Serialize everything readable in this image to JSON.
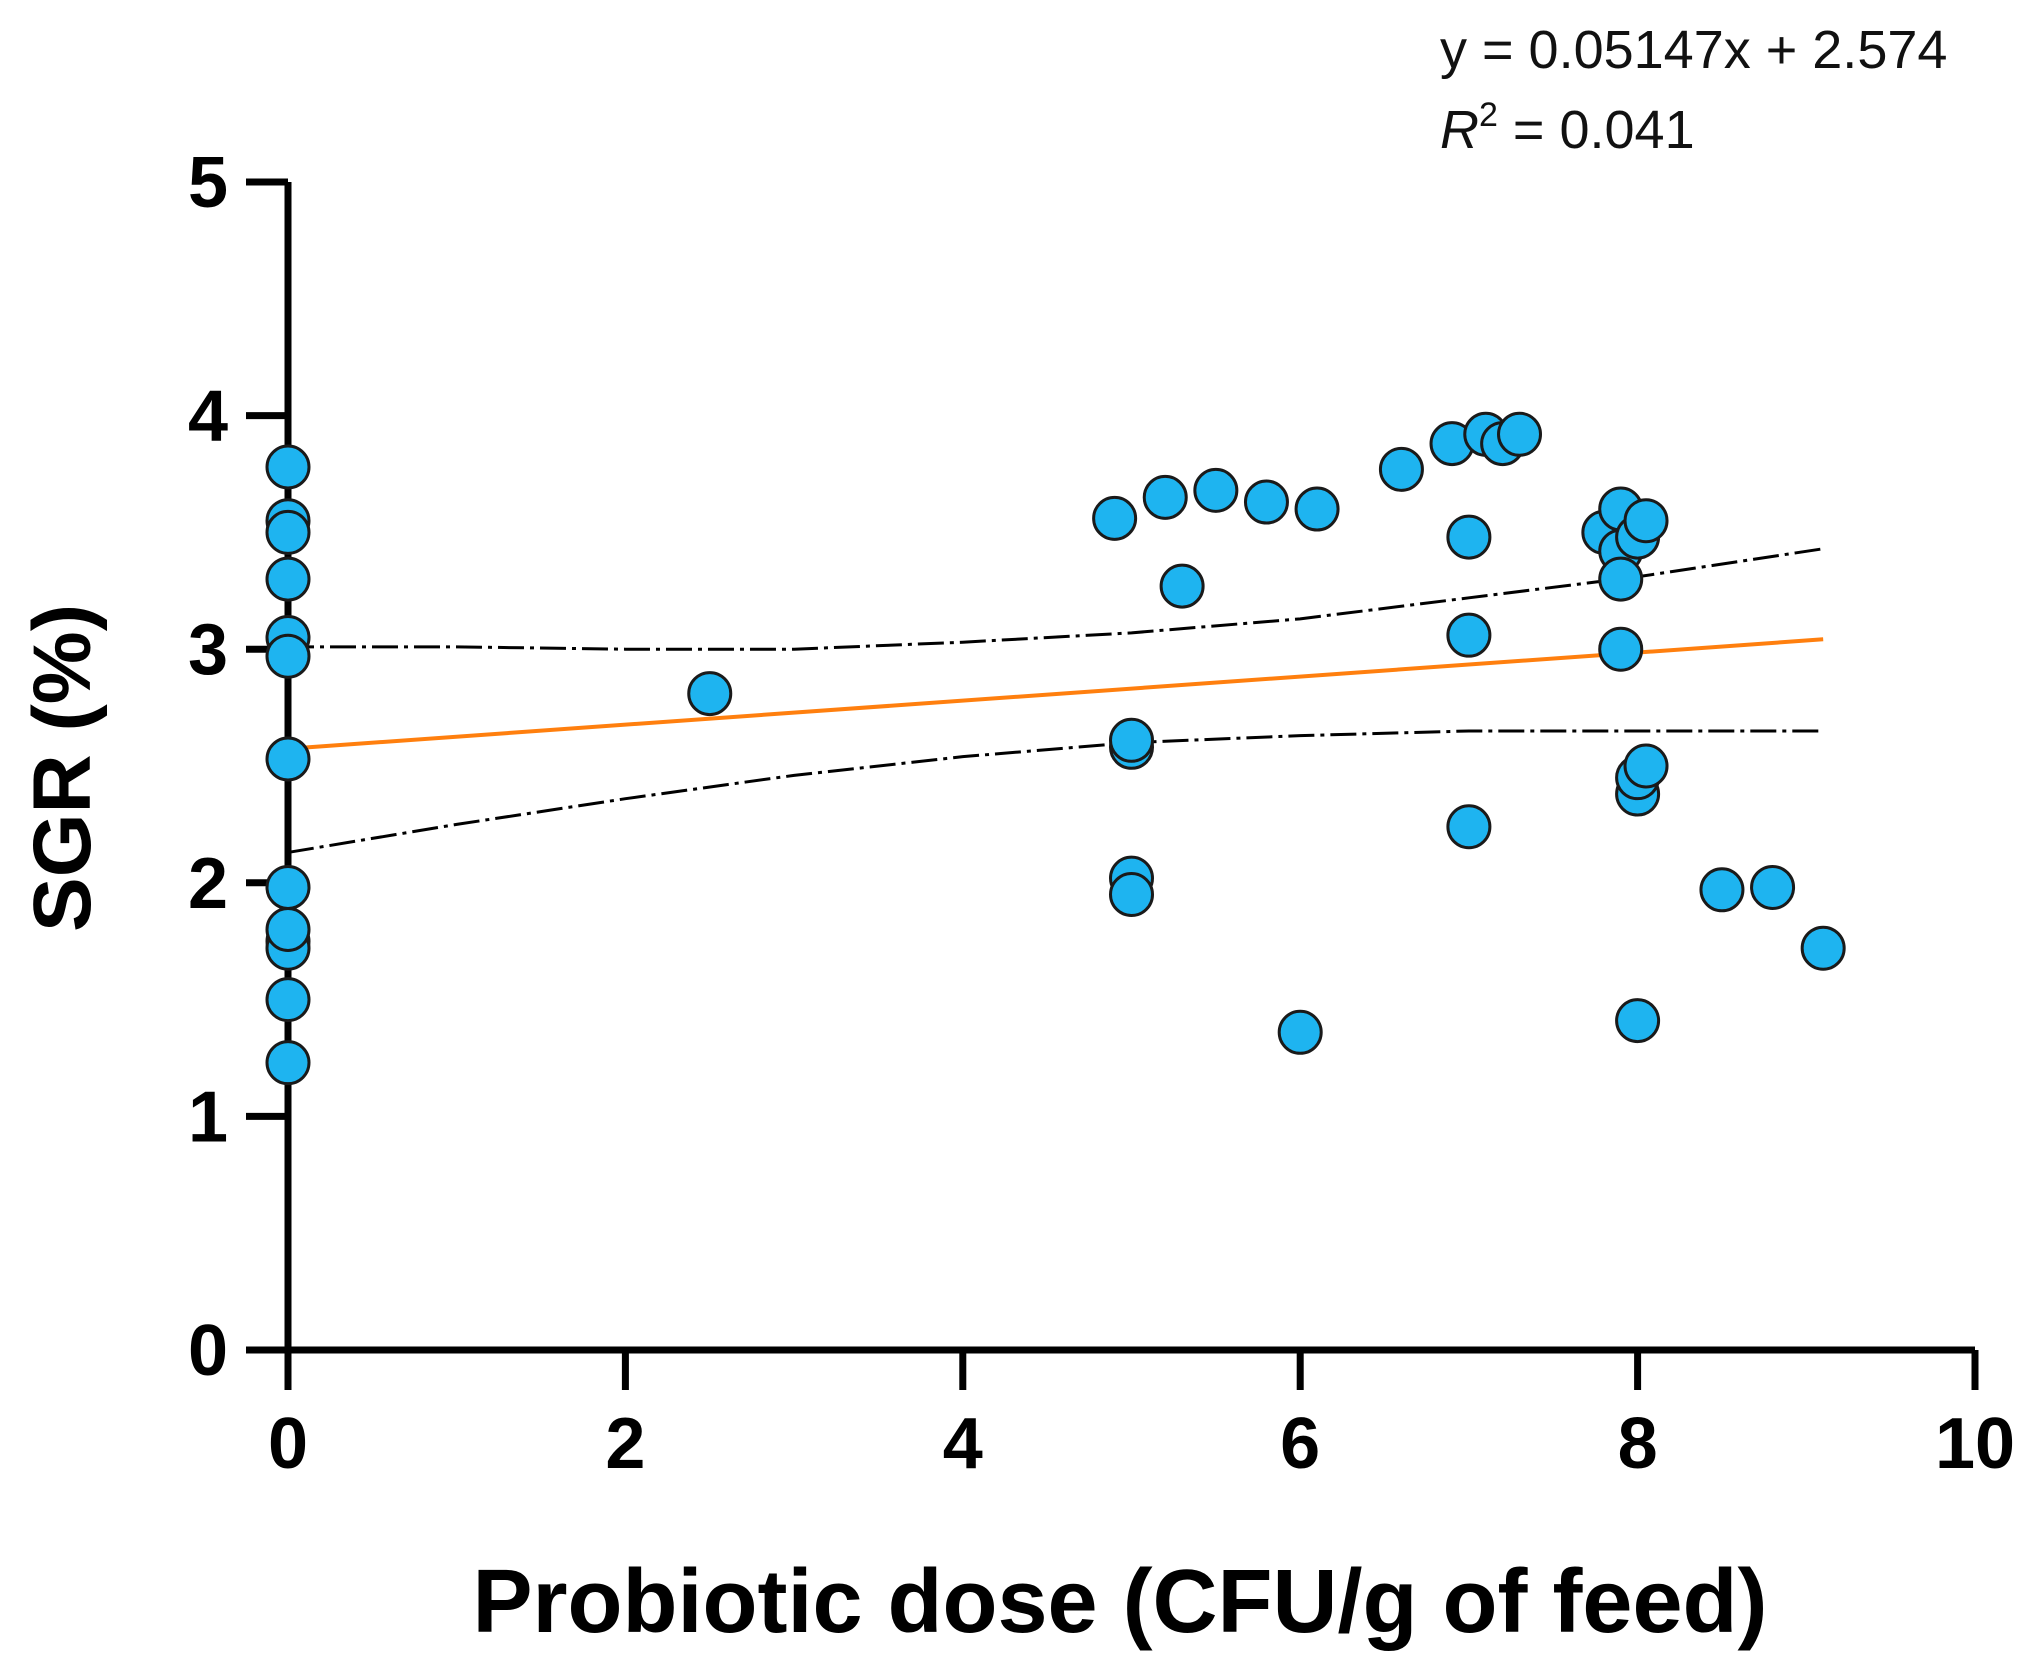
{
  "chart_data": {
    "type": "scatter",
    "title": "",
    "xlabel": "Probiotic dose (CFU/g of feed)",
    "ylabel": "SGR (%)",
    "xlim": [
      0,
      10
    ],
    "ylim": [
      0,
      5
    ],
    "xticks": [
      0,
      2,
      4,
      6,
      8,
      10
    ],
    "yticks": [
      0,
      1,
      2,
      3,
      4,
      5
    ],
    "grid": false,
    "annotation": {
      "equation": "y = 0.05147x + 2.574",
      "r2_prefix": "R",
      "r2_sup": "2",
      "r2_value": " = 0.041"
    },
    "colors": {
      "point_fill": "#1EB4F0",
      "point_stroke": "#1a1a1a",
      "fit_line": "#FF7F0E",
      "ci_line": "#000000"
    },
    "fit": {
      "slope": 0.05147,
      "intercept": 2.574,
      "x_range": [
        0,
        9.1
      ]
    },
    "confidence_band": {
      "upper": [
        [
          0,
          3.01
        ],
        [
          1,
          3.01
        ],
        [
          2,
          3.0
        ],
        [
          3,
          3.0
        ],
        [
          4,
          3.03
        ],
        [
          5,
          3.07
        ],
        [
          6,
          3.13
        ],
        [
          7,
          3.22
        ],
        [
          8,
          3.31
        ],
        [
          9.1,
          3.43
        ]
      ],
      "lower": [
        [
          0,
          2.13
        ],
        [
          1,
          2.25
        ],
        [
          2,
          2.36
        ],
        [
          3,
          2.46
        ],
        [
          4,
          2.54
        ],
        [
          5,
          2.6
        ],
        [
          6,
          2.63
        ],
        [
          7,
          2.65
        ],
        [
          8,
          2.65
        ],
        [
          9.1,
          2.65
        ]
      ]
    },
    "series": [
      {
        "name": "SGR",
        "points": [
          [
            0,
            3.78
          ],
          [
            0,
            3.55
          ],
          [
            0,
            3.5
          ],
          [
            0,
            3.3
          ],
          [
            0,
            3.05
          ],
          [
            0,
            2.97
          ],
          [
            0,
            2.53
          ],
          [
            0,
            1.98
          ],
          [
            0,
            1.75
          ],
          [
            0,
            1.72
          ],
          [
            0,
            1.8
          ],
          [
            0,
            1.5
          ],
          [
            0,
            1.23
          ],
          [
            2.5,
            2.81
          ],
          [
            4.9,
            3.56
          ],
          [
            5.0,
            2.58
          ],
          [
            5.0,
            2.61
          ],
          [
            5.0,
            2.02
          ],
          [
            5.0,
            1.95
          ],
          [
            5.2,
            3.65
          ],
          [
            5.3,
            3.27
          ],
          [
            5.5,
            3.68
          ],
          [
            5.8,
            3.63
          ],
          [
            6.0,
            1.36
          ],
          [
            6.1,
            3.6
          ],
          [
            6.6,
            3.77
          ],
          [
            6.9,
            3.88
          ],
          [
            7.0,
            3.48
          ],
          [
            7.0,
            3.06
          ],
          [
            7.0,
            2.24
          ],
          [
            7.1,
            3.92
          ],
          [
            7.2,
            3.88
          ],
          [
            7.3,
            3.92
          ],
          [
            7.8,
            3.5
          ],
          [
            7.9,
            3.6
          ],
          [
            7.9,
            3.42
          ],
          [
            7.9,
            3.3
          ],
          [
            7.9,
            3.0
          ],
          [
            8.0,
            3.48
          ],
          [
            8.0,
            2.38
          ],
          [
            8.0,
            2.45
          ],
          [
            8.0,
            1.41
          ],
          [
            8.05,
            3.55
          ],
          [
            8.05,
            2.5
          ],
          [
            8.5,
            1.97
          ],
          [
            8.8,
            1.98
          ],
          [
            9.1,
            1.72
          ]
        ]
      }
    ]
  }
}
